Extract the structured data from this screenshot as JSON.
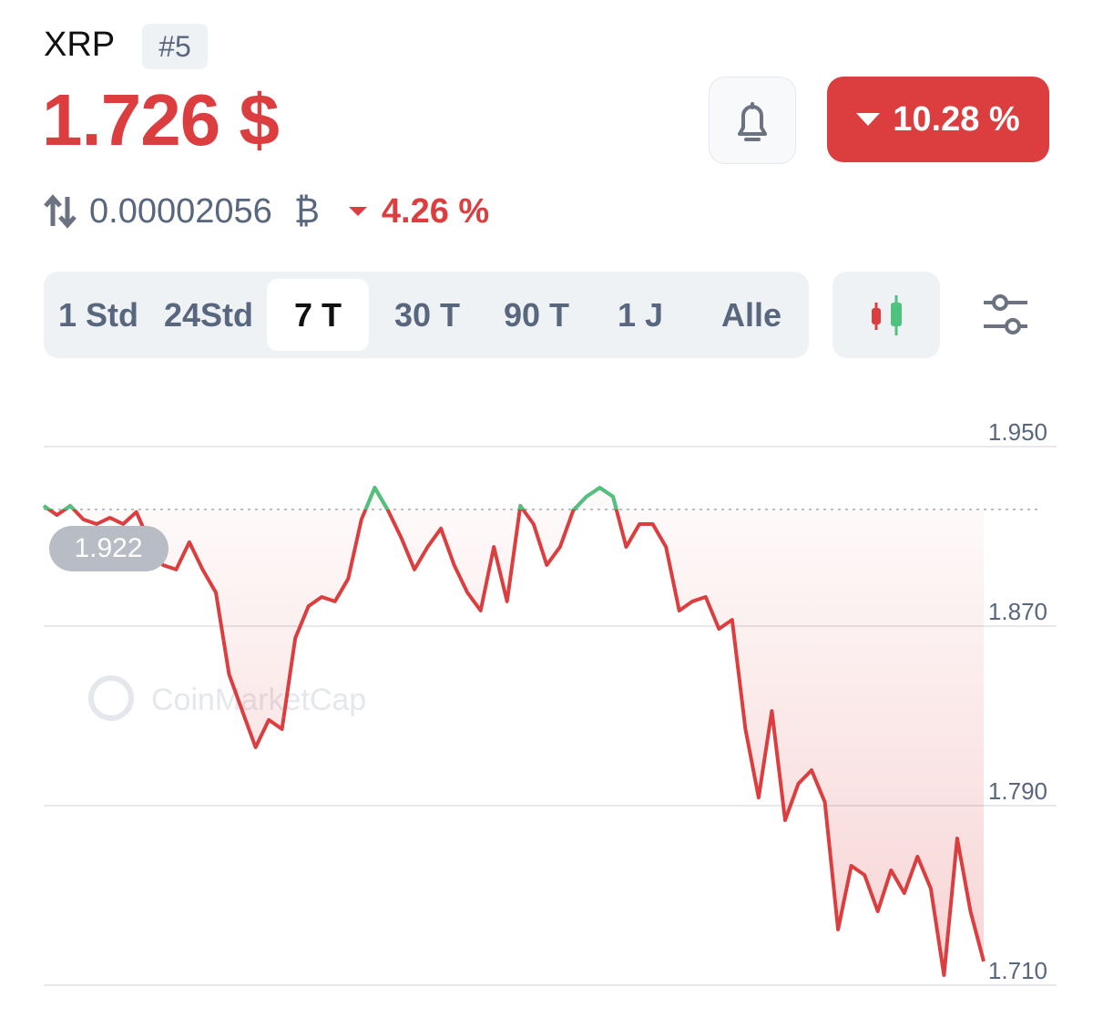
{
  "header": {
    "title": "XRP",
    "rank": "#5",
    "price": "1.726 $",
    "change": "10.28 %",
    "btc_price": "0.00002056",
    "btc_symbol": "₿",
    "btc_change": "4.26 %"
  },
  "tabs": {
    "items": [
      "1 Std",
      "24Std",
      "7 T",
      "30 T",
      "90 T",
      "1 J",
      "Alle"
    ],
    "active": 2
  },
  "chart_data": {
    "type": "line",
    "watermark": "CoinMarketCap",
    "values": [
      1.9236,
      1.9195,
      1.9236,
      1.9175,
      1.9155,
      1.9183,
      1.9155,
      1.9208,
      1.9074,
      1.8972,
      1.8952,
      1.9074,
      1.8952,
      1.885,
      1.8485,
      1.8322,
      1.816,
      1.8282,
      1.8241,
      1.8647,
      1.8789,
      1.883,
      1.881,
      1.8911,
      1.9175,
      1.9317,
      1.9216,
      1.9094,
      1.8952,
      1.9053,
      1.9135,
      1.8972,
      1.885,
      1.8769,
      1.9053,
      1.881,
      1.9236,
      1.9155,
      1.8972,
      1.9053,
      1.9216,
      1.9277,
      1.9317,
      1.9277,
      1.9053,
      1.9155,
      1.9155,
      1.9053,
      1.8769,
      1.881,
      1.883,
      1.8688,
      1.8728,
      1.8241,
      1.7936,
      1.8322,
      1.7835,
      1.7998,
      1.8058,
      1.7916,
      1.7348,
      1.7632,
      1.7591,
      1.7429,
      1.7612,
      1.751,
      1.7673,
      1.7531,
      1.7145,
      1.7754,
      1.7429,
      1.7206
    ],
    "baseline": 1.922,
    "color_above": "#4fc27f",
    "color_below": "#dc3e3f",
    "ylim": [
      1.71,
      1.95
    ],
    "yticks": [
      {
        "value": 1.95,
        "label": "1.950"
      },
      {
        "value": 1.87,
        "label": "1.870"
      },
      {
        "value": 1.79,
        "label": "1.790"
      },
      {
        "value": 1.71,
        "label": "1.710"
      }
    ],
    "grid": true
  }
}
